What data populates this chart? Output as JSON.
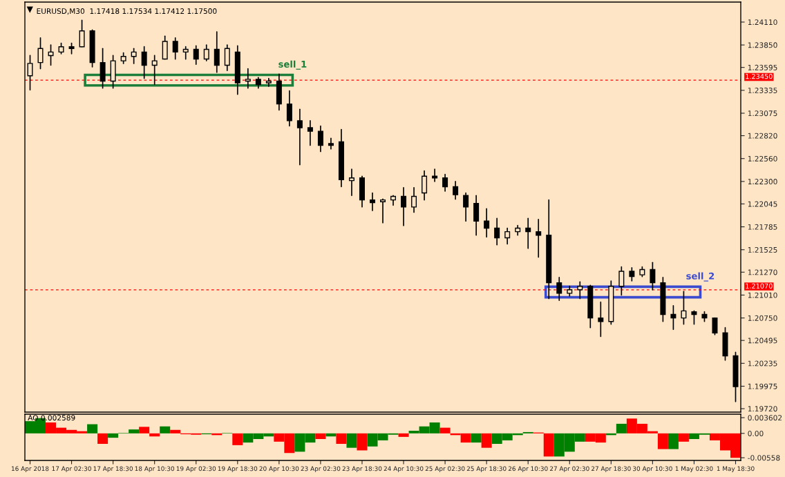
{
  "chart_data": [
    {
      "type": "candlestick",
      "title": "EURUSD,M30  1.17418 1.17534 1.17412 1.17500",
      "categories": [
        null,
        null,
        null,
        null,
        null,
        null,
        null,
        null,
        null,
        null,
        null,
        null,
        null,
        null,
        null,
        null,
        null,
        null,
        null,
        null,
        null,
        null,
        null,
        null,
        null,
        null,
        null,
        null,
        null,
        null,
        null,
        null,
        null,
        null,
        null,
        null,
        null,
        null,
        null,
        null,
        null,
        null,
        null,
        null,
        null,
        null,
        null,
        null,
        null,
        null,
        null,
        null,
        null,
        null,
        null,
        null,
        null,
        null,
        null,
        null,
        null,
        null,
        null,
        null,
        null,
        null,
        null,
        null,
        null
      ],
      "ohlc": [
        [
          1.235,
          1.2373,
          1.2334,
          1.2364
        ],
        [
          1.2365,
          1.2393,
          1.2358,
          1.2381
        ],
        [
          1.2373,
          1.2385,
          1.2362,
          1.2377
        ],
        [
          1.2377,
          1.2387,
          1.2375,
          1.2383
        ],
        [
          1.2383,
          1.2387,
          1.2375,
          1.2381
        ],
        [
          1.2383,
          1.2413,
          1.2383,
          1.2401
        ],
        [
          1.2401,
          1.2402,
          1.236,
          1.2365
        ],
        [
          1.2365,
          1.2381,
          1.2336,
          1.2344
        ],
        [
          1.2344,
          1.2373,
          1.2336,
          1.2367
        ],
        [
          1.2367,
          1.2376,
          1.2364,
          1.2372
        ],
        [
          1.2372,
          1.2381,
          1.2364,
          1.2377
        ],
        [
          1.2377,
          1.2383,
          1.2347,
          1.2362
        ],
        [
          1.2362,
          1.2373,
          1.234,
          1.2367
        ],
        [
          1.2369,
          1.2395,
          1.2369,
          1.2389
        ],
        [
          1.2389,
          1.2393,
          1.2369,
          1.2377
        ],
        [
          1.2377,
          1.2383,
          1.2369,
          1.238
        ],
        [
          1.238,
          1.2384,
          1.2363,
          1.2369
        ],
        [
          1.2369,
          1.2385,
          1.2367,
          1.238
        ],
        [
          1.238,
          1.24,
          1.2354,
          1.2362
        ],
        [
          1.2362,
          1.2385,
          1.2356,
          1.2381
        ],
        [
          1.2377,
          1.2384,
          1.2329,
          1.2342
        ],
        [
          1.2344,
          1.2358,
          1.2336,
          1.2346
        ],
        [
          1.2346,
          1.2348,
          1.2336,
          1.234
        ],
        [
          1.2342,
          1.2347,
          1.2338,
          1.2344
        ],
        [
          1.2344,
          1.2352,
          1.2311,
          1.2318
        ],
        [
          1.2318,
          1.2333,
          1.2293,
          1.2299
        ],
        [
          1.2299,
          1.2312,
          1.2249,
          1.2291
        ],
        [
          1.2291,
          1.2299,
          1.2271,
          1.2287
        ],
        [
          1.2287,
          1.2293,
          1.2264,
          1.2271
        ],
        [
          1.2273,
          1.2279,
          1.2267,
          1.2271
        ],
        [
          1.2275,
          1.2289,
          1.2224,
          1.2232
        ],
        [
          1.2231,
          1.2244,
          1.2214,
          1.2234
        ],
        [
          1.2234,
          1.2236,
          1.2201,
          1.2209
        ],
        [
          1.2209,
          1.2217,
          1.2197,
          1.2206
        ],
        [
          1.2207,
          1.221,
          1.2183,
          1.2209
        ],
        [
          1.2209,
          1.2214,
          1.2203,
          1.2213
        ],
        [
          1.2213,
          1.2223,
          1.218,
          1.2201
        ],
        [
          1.2201,
          1.2223,
          1.2195,
          1.2213
        ],
        [
          1.2217,
          1.2242,
          1.2209,
          1.2236
        ],
        [
          1.2236,
          1.2244,
          1.223,
          1.2234
        ],
        [
          1.2234,
          1.2238,
          1.2219,
          1.2224
        ],
        [
          1.2224,
          1.223,
          1.221,
          1.2215
        ],
        [
          1.2214,
          1.2217,
          1.2185,
          1.2201
        ],
        [
          1.2205,
          1.2214,
          1.2169,
          1.2185
        ],
        [
          1.2185,
          1.2199,
          1.2167,
          1.2177
        ],
        [
          1.2177,
          1.2188,
          1.2158,
          1.2166
        ],
        [
          1.2166,
          1.2177,
          1.2159,
          1.2173
        ],
        [
          1.2173,
          1.218,
          1.2169,
          1.2177
        ],
        [
          1.2177,
          1.2188,
          1.2154,
          1.2173
        ],
        [
          1.2173,
          1.2187,
          1.2144,
          1.2169
        ],
        [
          1.2169,
          1.2209,
          1.2097,
          1.2115
        ],
        [
          1.2115,
          1.2121,
          1.2095,
          1.2103
        ],
        [
          1.2103,
          1.2111,
          1.21,
          1.2107
        ],
        [
          1.2107,
          1.2116,
          1.2097,
          1.2111
        ],
        [
          1.2111,
          1.2112,
          1.2064,
          1.2075
        ],
        [
          1.2075,
          1.2093,
          1.2054,
          1.2071
        ],
        [
          1.2071,
          1.2117,
          1.2068,
          1.2111
        ],
        [
          1.2111,
          1.2133,
          1.2101,
          1.2128
        ],
        [
          1.2128,
          1.2132,
          1.2117,
          1.2122
        ],
        [
          1.2124,
          1.2133,
          1.2122,
          1.213
        ],
        [
          1.213,
          1.2138,
          1.2107,
          1.2115
        ],
        [
          1.2115,
          1.2121,
          1.2071,
          1.2079
        ],
        [
          1.2079,
          1.2089,
          1.2062,
          1.2075
        ],
        [
          1.2075,
          1.2105,
          1.2068,
          1.2083
        ],
        [
          1.2082,
          1.2083,
          1.2068,
          1.2079
        ],
        [
          1.2079,
          1.2082,
          1.2071,
          1.2075
        ],
        [
          1.2075,
          1.2075,
          1.2056,
          1.2058
        ],
        [
          1.2058,
          1.2064,
          1.2027,
          1.2032
        ],
        [
          1.2032,
          1.2036,
          1.198,
          1.1997
        ]
      ],
      "ylim": [
        1.19681,
        1.24337
      ],
      "yticks": [
        {
          "value": 1.2411,
          "label": "1.24110"
        },
        {
          "value": 1.2385,
          "label": "1.23850"
        },
        {
          "value": 1.23595,
          "label": "1.23595"
        },
        {
          "value": 1.23335,
          "label": "1.23335"
        },
        {
          "value": 1.23075,
          "label": "1.23075"
        },
        {
          "value": 1.2282,
          "label": "1.22820"
        },
        {
          "value": 1.2256,
          "label": "1.22560"
        },
        {
          "value": 1.223,
          "label": "1.22300"
        },
        {
          "value": 1.22045,
          "label": "1.22045"
        },
        {
          "value": 1.21785,
          "label": "1.21785"
        },
        {
          "value": 1.21525,
          "label": "1.21525"
        },
        {
          "value": 1.2127,
          "label": "1.21270"
        },
        {
          "value": 1.2101,
          "label": "1.21010"
        },
        {
          "value": 1.2075,
          "label": "1.20750"
        },
        {
          "value": 1.20495,
          "label": "1.20495"
        },
        {
          "value": 1.20235,
          "label": "1.20235"
        },
        {
          "value": 1.19975,
          "label": "1.19975"
        },
        {
          "value": 1.1972,
          "label": "1.19720"
        }
      ],
      "tick_labels": "y",
      "ref_lines": [
        {
          "axis": "y",
          "value": 1.2345,
          "label": "1.23450",
          "color": "#ff0000",
          "line_style": "dashed"
        },
        {
          "axis": "y",
          "value": 1.2107,
          "label": "1.21070",
          "color": "#ff0000",
          "line_style": "dashed"
        }
      ],
      "annotations": [
        {
          "text": "sell_1",
          "y": 1.2345
        },
        {
          "text": "sell_2",
          "y": 1.21045
        }
      ]
    },
    {
      "type": "bar",
      "title": "AO 0.002589",
      "categories": [
        "16 Apr 2018",
        null,
        null,
        null,
        "17 Apr 02:30",
        null,
        null,
        null,
        "17 Apr 18:30",
        null,
        null,
        null,
        "18 Apr 10:30",
        null,
        null,
        null,
        "19 Apr 02:30",
        null,
        null,
        null,
        "19 Apr 18:30",
        null,
        null,
        null,
        "20 Apr 10:30",
        null,
        null,
        null,
        "23 Apr 02:30",
        null,
        null,
        null,
        "23 Apr 18:30",
        null,
        null,
        null,
        "24 Apr 10:30",
        null,
        null,
        null,
        "25 Apr 02:30",
        null,
        null,
        null,
        "25 Apr 18:30",
        null,
        null,
        null,
        "26 Apr 10:30",
        null,
        null,
        null,
        "27 Apr 02:30",
        null,
        null,
        null,
        "27 Apr 18:30",
        null,
        null,
        null,
        "30 Apr 10:30",
        null,
        null,
        null,
        "1 May 02:30",
        null,
        null,
        null,
        "1 May 18:30"
      ],
      "values": [
        0.0028,
        0.0035,
        0.0025,
        0.0013,
        0.0008,
        0.0005,
        0.0021,
        -0.0024,
        -0.001,
        0.0001,
        0.0009,
        0.0015,
        -0.0007,
        0.0016,
        0.0008,
        -0.0002,
        -0.0003,
        -0.0002,
        -0.0004,
        0.0001,
        -0.0027,
        -0.0021,
        -0.0013,
        -0.0007,
        -0.0019,
        -0.0045,
        -0.0042,
        -0.0021,
        -0.0013,
        -0.0007,
        -0.0024,
        -0.0033,
        -0.0039,
        -0.003,
        -0.0016,
        -0.0003,
        -0.0008,
        0.0006,
        0.0016,
        0.0025,
        0.0013,
        -0.0004,
        -0.0021,
        -0.0021,
        -0.0033,
        -0.0024,
        -0.0016,
        -0.0004,
        0.0003,
        0.0002,
        -0.0053,
        -0.0053,
        -0.0042,
        -0.0019,
        -0.0019,
        -0.0021,
        -0.0004,
        0.0022,
        0.0034,
        0.0022,
        0.0005,
        -0.0036,
        -0.0036,
        -0.0019,
        -0.0013,
        -0.0003,
        -0.0016,
        -0.0039,
        -0.0056
      ],
      "colors": [
        "#008000",
        "#008000",
        "#ff0000",
        "#ff0000",
        "#ff0000",
        "#ff0000",
        "#008000",
        "#ff0000",
        "#008000",
        "#008000",
        "#008000",
        "#ff0000",
        "#ff0000",
        "#008000",
        "#ff0000",
        "#ff0000",
        "#ff0000",
        "#008000",
        "#ff0000",
        "#008000",
        "#ff0000",
        "#008000",
        "#008000",
        "#008000",
        "#ff0000",
        "#ff0000",
        "#008000",
        "#008000",
        "#ff0000",
        "#008000",
        "#ff0000",
        "#008000",
        "#ff0000",
        "#008000",
        "#008000",
        "#008000",
        "#ff0000",
        "#008000",
        "#008000",
        "#008000",
        "#ff0000",
        "#ff0000",
        "#ff0000",
        "#008000",
        "#ff0000",
        "#008000",
        "#008000",
        "#008000",
        "#008000",
        "#ff0000",
        "#ff0000",
        "#008000",
        "#008000",
        "#008000",
        "#ff0000",
        "#ff0000",
        "#008000",
        "#008000",
        "#ff0000",
        "#ff0000",
        "#ff0000",
        "#ff0000",
        "#008000",
        "#ff0000",
        "#008000",
        "#008000",
        "#ff0000",
        "#ff0000",
        "#ff0000"
      ],
      "ylim": [
        -0.0062,
        0.0044
      ],
      "yticks": [
        {
          "value": 0.003602,
          "label": "0.003602"
        },
        {
          "value": 0,
          "label": "0.00"
        },
        {
          "value": -0.00558,
          "label": "-0.00558"
        }
      ]
    }
  ]
}
